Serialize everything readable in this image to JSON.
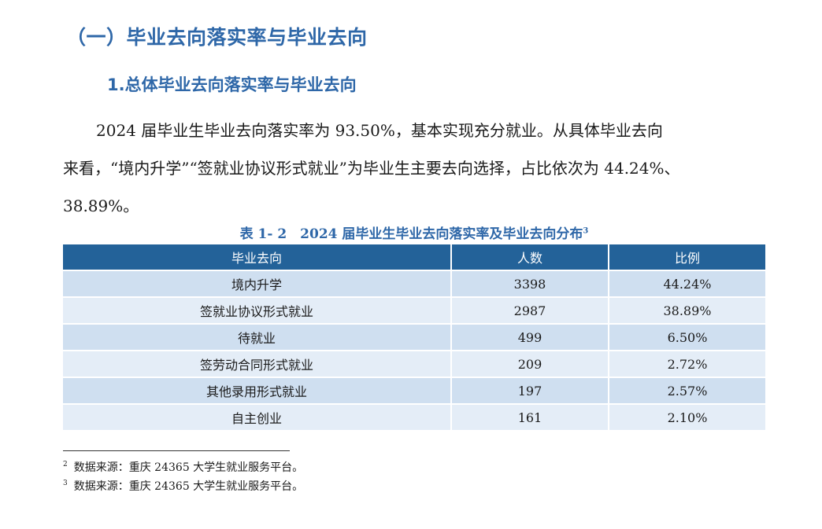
{
  "section_heading": "（一）毕业去向落实率与毕业去向",
  "sub_heading": "1.总体毕业去向落实率与毕业去向",
  "paragraph": {
    "lines": [
      "2024 届毕业生毕业去向落实率为 93.50%，基本实现充分就业。从具体毕业去向",
      "来看，“境内升学”“签就业协议形式就业”为毕业生主要去向选择，占比依次为 44.24%、",
      "38.89%。"
    ]
  },
  "table_caption": {
    "text": "表 1- 2　2024 届毕业生毕业去向落实率及毕业去向分布",
    "footnote_ref": "3"
  },
  "table": {
    "headers": [
      "毕业去向",
      "人数",
      "比例"
    ],
    "rows": [
      {
        "destination": "境内升学",
        "count": "3398",
        "ratio": "44.24%"
      },
      {
        "destination": "签就业协议形式就业",
        "count": "2987",
        "ratio": "38.89%"
      },
      {
        "destination": "待就业",
        "count": "499",
        "ratio": "6.50%"
      },
      {
        "destination": "签劳动合同形式就业",
        "count": "209",
        "ratio": "2.72%"
      },
      {
        "destination": "其他录用形式就业",
        "count": "197",
        "ratio": "2.57%"
      },
      {
        "destination": "自主创业",
        "count": "161",
        "ratio": "2.10%"
      }
    ]
  },
  "footnotes": [
    {
      "marker": "2",
      "text": "数据来源：重庆 24365 大学生就业服务平台。"
    },
    {
      "marker": "3",
      "text": "数据来源：重庆 24365 大学生就业服务平台。"
    }
  ],
  "colors": {
    "heading": "#2e67a8",
    "table_header_bg": "#236299",
    "row_odd_bg": "#cfdff0",
    "row_even_bg": "#e4edf7"
  }
}
